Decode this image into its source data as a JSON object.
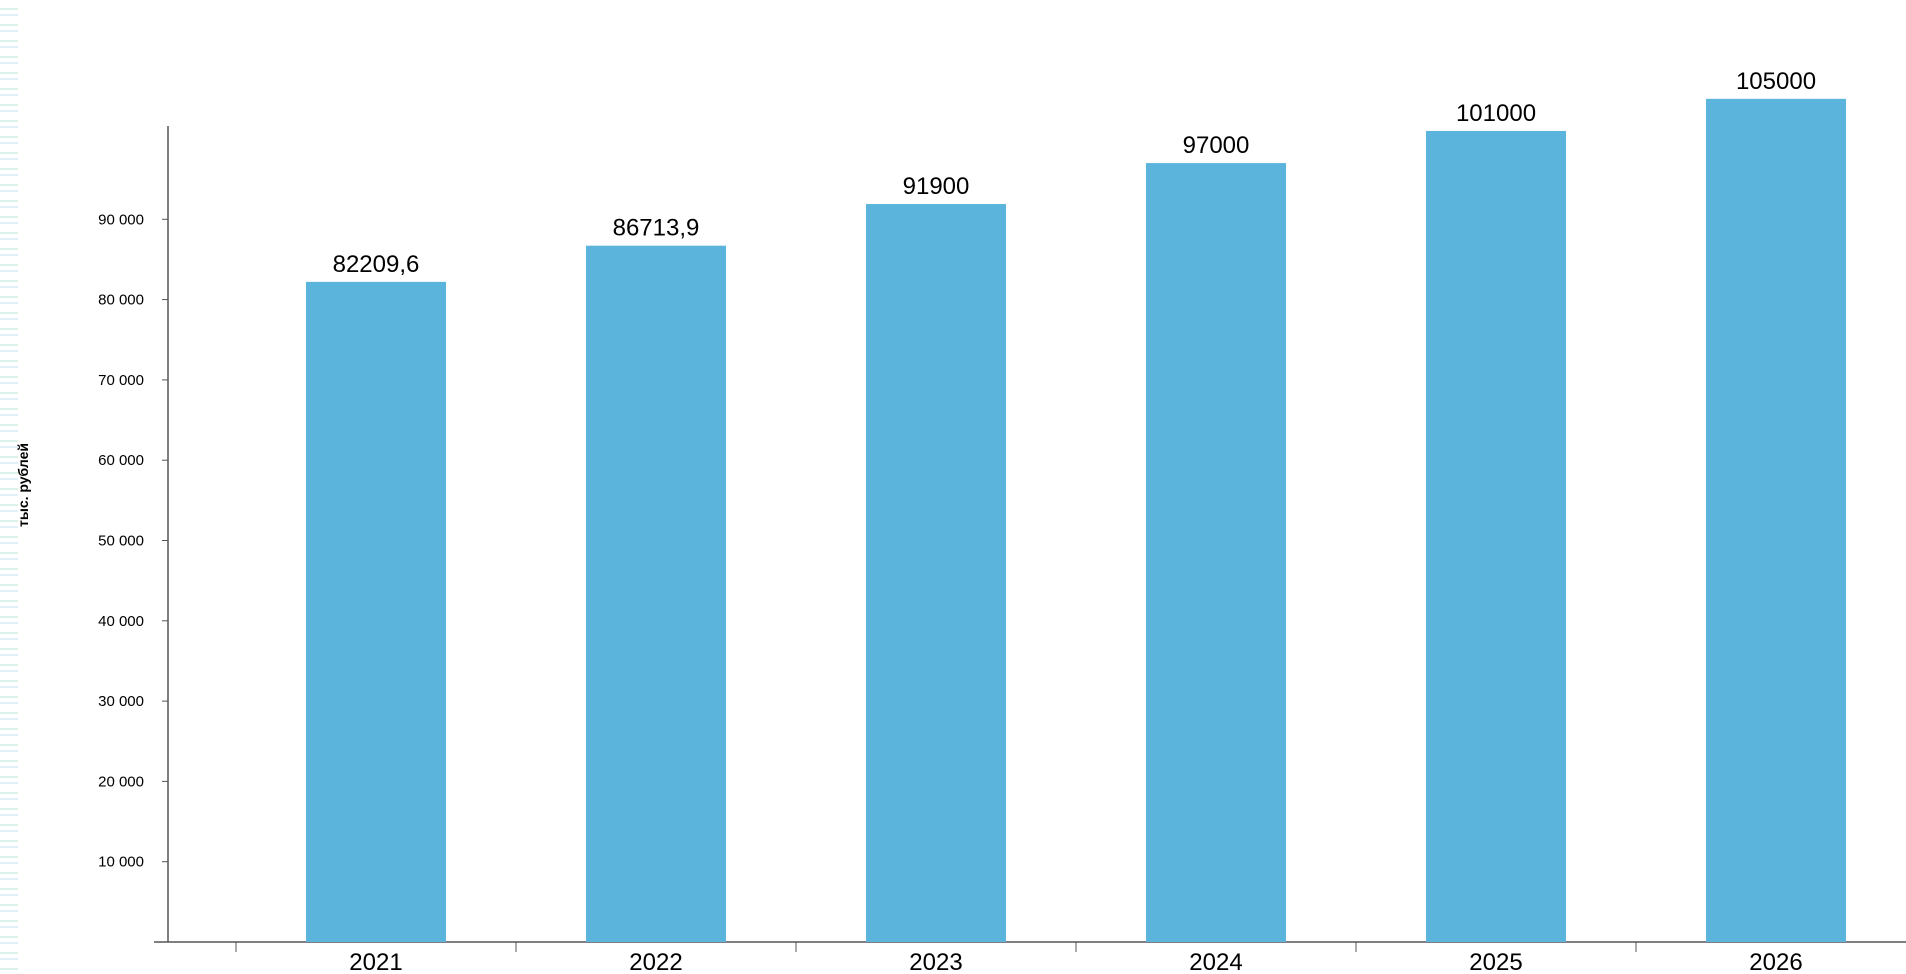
{
  "chart_data": {
    "type": "bar",
    "categories": [
      "2021",
      "2022",
      "2023",
      "2024",
      "2025",
      "2026"
    ],
    "values": [
      82209.6,
      86713.9,
      91900,
      97000,
      101000,
      105000
    ],
    "data_labels": [
      "82209,6",
      "86713,9",
      "91900",
      "97000",
      "101000",
      "105000"
    ],
    "ylabel": "тыс. рублей",
    "yticks": [
      10000,
      20000,
      30000,
      40000,
      50000,
      60000,
      70000,
      80000,
      90000
    ],
    "ytick_labels": [
      "10 000",
      "20 000",
      "30 000",
      "40 000",
      "50 000",
      "60 000",
      "70 000",
      "80 000",
      "90 000"
    ],
    "ylim": [
      0,
      110000
    ],
    "grid": false,
    "legend": "none",
    "bar_color": "#5ab4dc",
    "axis_color": "#555555",
    "text_color": "#000000"
  }
}
